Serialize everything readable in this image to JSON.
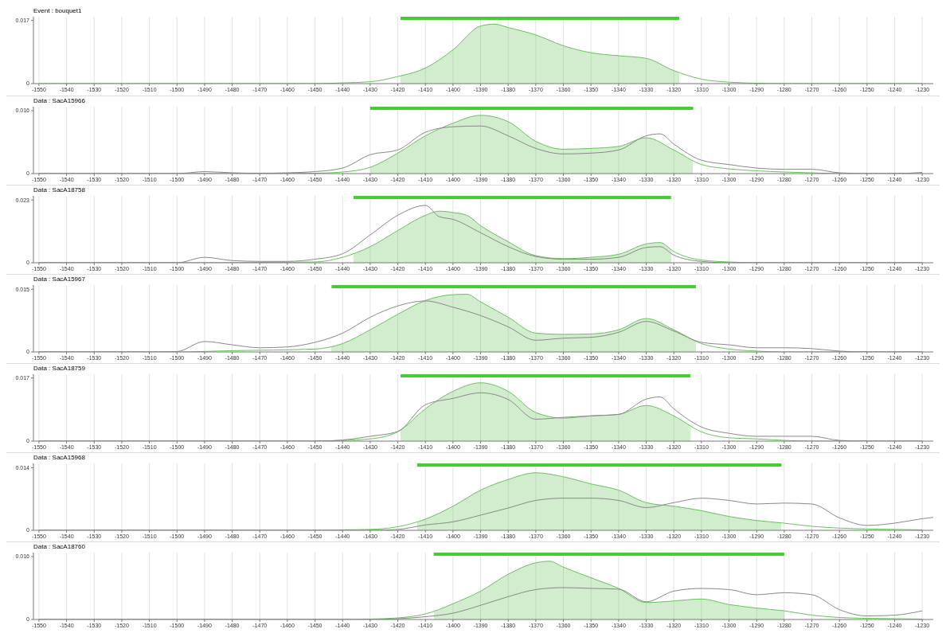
{
  "chart_data": [
    {
      "type": "area",
      "title": "Event : bouquet1",
      "xlim": [
        -1552,
        -1226
      ],
      "xticks": [
        -1550,
        -1540,
        -1530,
        -1520,
        -1510,
        -1500,
        -1490,
        -1480,
        -1470,
        -1460,
        -1450,
        -1440,
        -1430,
        -1420,
        -1410,
        -1400,
        -1390,
        -1380,
        -1370,
        -1360,
        -1350,
        -1340,
        -1330,
        -1320,
        -1310,
        -1300,
        -1290,
        -1280,
        -1270,
        -1260,
        -1250,
        -1240,
        -1230
      ],
      "ylim": [
        0,
        0.018
      ],
      "yticks": [
        0,
        0.017
      ],
      "grid": "x",
      "bands": [
        {
          "axis": "x",
          "from": -1419,
          "to": -1318,
          "color": "#44cc33"
        }
      ],
      "series": [
        {
          "color": "#66c35a",
          "x": [
            -1550,
            -1500,
            -1450,
            -1440,
            -1430,
            -1420,
            -1410,
            -1400,
            -1390,
            -1385,
            -1380,
            -1370,
            -1360,
            -1350,
            -1340,
            -1330,
            -1320,
            -1310,
            -1300,
            -1290,
            -1280,
            -1230
          ],
          "values": [
            0,
            0,
            0,
            0.0002,
            0.0005,
            0.0019,
            0.0042,
            0.0091,
            0.0155,
            0.016,
            0.0151,
            0.0131,
            0.0102,
            0.0083,
            0.0075,
            0.0068,
            0.0035,
            0.0012,
            0.0004,
            0.0001,
            0,
            0
          ]
        }
      ]
    },
    {
      "type": "area",
      "title": "Data : SacA15966",
      "xlim": [
        -1552,
        -1226
      ],
      "xticks": [
        -1550,
        -1540,
        -1530,
        -1520,
        -1510,
        -1500,
        -1490,
        -1480,
        -1470,
        -1460,
        -1450,
        -1440,
        -1430,
        -1420,
        -1410,
        -1400,
        -1390,
        -1380,
        -1370,
        -1360,
        -1350,
        -1340,
        -1330,
        -1320,
        -1310,
        -1300,
        -1290,
        -1280,
        -1270,
        -1260,
        -1250,
        -1240,
        -1230
      ],
      "ylim": [
        0,
        0.017
      ],
      "yticks": [
        0,
        0.016
      ],
      "grid": "x",
      "bands": [
        {
          "axis": "x",
          "from": -1430,
          "to": -1313,
          "color": "#44cc33"
        }
      ],
      "series": [
        {
          "type": "line",
          "color": "#888888",
          "x": [
            -1550,
            -1500,
            -1490,
            -1480,
            -1470,
            -1460,
            -1450,
            -1440,
            -1430,
            -1420,
            -1410,
            -1400,
            -1390,
            -1380,
            -1370,
            -1360,
            -1350,
            -1340,
            -1330,
            -1325,
            -1320,
            -1310,
            -1300,
            -1290,
            -1280,
            -1270,
            -1260,
            -1250,
            -1240,
            -1230
          ],
          "values": [
            0,
            0,
            0.0005,
            0.0002,
            0.0001,
            0.0002,
            0.0005,
            0.0014,
            0.0048,
            0.006,
            0.0105,
            0.0119,
            0.0121,
            0.0096,
            0.0064,
            0.005,
            0.0052,
            0.006,
            0.0096,
            0.0101,
            0.0075,
            0.0034,
            0.0023,
            0.0014,
            0.0011,
            0.0011,
            0.0002,
            0,
            0,
            0.0003
          ]
        },
        {
          "color": "#66c35a",
          "x": [
            -1550,
            -1500,
            -1450,
            -1440,
            -1430,
            -1420,
            -1410,
            -1400,
            -1390,
            -1380,
            -1370,
            -1360,
            -1350,
            -1340,
            -1330,
            -1320,
            -1310,
            -1300,
            -1290,
            -1280,
            -1270,
            -1260,
            -1230
          ],
          "values": [
            0,
            0,
            0.0001,
            0.0004,
            0.0016,
            0.0052,
            0.0096,
            0.0128,
            0.0148,
            0.0132,
            0.0082,
            0.0062,
            0.0064,
            0.0069,
            0.0091,
            0.006,
            0.0023,
            0.0012,
            0.0007,
            0.0004,
            0.0002,
            0,
            0
          ]
        }
      ]
    },
    {
      "type": "area",
      "title": "Data : SacA18758",
      "xlim": [
        -1552,
        -1226
      ],
      "xticks": [
        -1550,
        -1540,
        -1530,
        -1520,
        -1510,
        -1500,
        -1490,
        -1480,
        -1470,
        -1460,
        -1450,
        -1440,
        -1430,
        -1420,
        -1410,
        -1400,
        -1390,
        -1380,
        -1370,
        -1360,
        -1350,
        -1340,
        -1330,
        -1320,
        -1310,
        -1300,
        -1290,
        -1280,
        -1270,
        -1260,
        -1250,
        -1240,
        -1230
      ],
      "ylim": [
        0,
        0.0245
      ],
      "yticks": [
        0,
        0.023
      ],
      "grid": "x",
      "bands": [
        {
          "axis": "x",
          "from": -1436,
          "to": -1321,
          "color": "#44cc33"
        }
      ],
      "series": [
        {
          "type": "line",
          "color": "#888888",
          "x": [
            -1550,
            -1500,
            -1490,
            -1480,
            -1470,
            -1460,
            -1450,
            -1440,
            -1430,
            -1420,
            -1410,
            -1405,
            -1400,
            -1390,
            -1380,
            -1370,
            -1360,
            -1350,
            -1340,
            -1330,
            -1325,
            -1320,
            -1310,
            -1300,
            -1230
          ],
          "values": [
            0,
            0,
            0.002,
            0.0008,
            0.0005,
            0.0005,
            0.0013,
            0.0033,
            0.0102,
            0.0174,
            0.021,
            0.0169,
            0.0159,
            0.011,
            0.0059,
            0.0023,
            0.0013,
            0.0013,
            0.002,
            0.0056,
            0.0059,
            0.0028,
            0.0005,
            0,
            0
          ]
        },
        {
          "color": "#66c35a",
          "x": [
            -1550,
            -1500,
            -1450,
            -1440,
            -1430,
            -1420,
            -1410,
            -1405,
            -1400,
            -1395,
            -1390,
            -1380,
            -1370,
            -1360,
            -1350,
            -1340,
            -1330,
            -1325,
            -1320,
            -1310,
            -1300,
            -1290,
            -1230
          ],
          "values": [
            0,
            0,
            0.0003,
            0.002,
            0.0059,
            0.0118,
            0.0174,
            0.0189,
            0.0184,
            0.0174,
            0.0136,
            0.0077,
            0.0026,
            0.0015,
            0.002,
            0.0031,
            0.0069,
            0.0074,
            0.0041,
            0.001,
            0.0003,
            0,
            0
          ]
        }
      ]
    },
    {
      "type": "area",
      "title": "Data : SacA15967",
      "xlim": [
        -1552,
        -1226
      ],
      "xticks": [
        -1550,
        -1540,
        -1530,
        -1520,
        -1510,
        -1500,
        -1490,
        -1480,
        -1470,
        -1460,
        -1450,
        -1440,
        -1430,
        -1420,
        -1410,
        -1400,
        -1390,
        -1380,
        -1370,
        -1360,
        -1350,
        -1340,
        -1330,
        -1320,
        -1310,
        -1300,
        -1290,
        -1280,
        -1270,
        -1260,
        -1250,
        -1240,
        -1230
      ],
      "ylim": [
        0,
        0.016
      ],
      "yticks": [
        0,
        0.015
      ],
      "grid": "x",
      "bands": [
        {
          "axis": "x",
          "from": -1444,
          "to": -1312,
          "color": "#44cc33"
        }
      ],
      "series": [
        {
          "type": "line",
          "color": "#888888",
          "x": [
            -1550,
            -1510,
            -1500,
            -1490,
            -1480,
            -1470,
            -1460,
            -1450,
            -1440,
            -1430,
            -1420,
            -1410,
            -1400,
            -1390,
            -1380,
            -1370,
            -1360,
            -1350,
            -1340,
            -1330,
            -1320,
            -1310,
            -1300,
            -1290,
            -1280,
            -1270,
            -1260,
            -1250,
            -1230
          ],
          "values": [
            0,
            0,
            0.0001,
            0.0025,
            0.0017,
            0.001,
            0.0012,
            0.0023,
            0.0045,
            0.0083,
            0.011,
            0.0122,
            0.0107,
            0.0087,
            0.006,
            0.0028,
            0.0033,
            0.0035,
            0.0047,
            0.0073,
            0.005,
            0.0023,
            0.0017,
            0.001,
            0.001,
            0.0008,
            0.0002,
            0,
            0
          ]
        },
        {
          "color": "#66c35a",
          "x": [
            -1550,
            -1500,
            -1480,
            -1450,
            -1440,
            -1430,
            -1420,
            -1410,
            -1400,
            -1395,
            -1390,
            -1380,
            -1370,
            -1360,
            -1350,
            -1340,
            -1330,
            -1320,
            -1310,
            -1300,
            -1290,
            -1280,
            -1230
          ],
          "values": [
            0,
            0,
            0.0003,
            0.0007,
            0.002,
            0.0053,
            0.009,
            0.0123,
            0.0137,
            0.0138,
            0.012,
            0.0083,
            0.0045,
            0.0042,
            0.0043,
            0.0053,
            0.008,
            0.0053,
            0.002,
            0.0007,
            0.0002,
            0,
            0
          ]
        }
      ]
    },
    {
      "type": "area",
      "title": "Data : SacA18759",
      "xlim": [
        -1552,
        -1226
      ],
      "xticks": [
        -1550,
        -1540,
        -1530,
        -1520,
        -1510,
        -1500,
        -1490,
        -1480,
        -1470,
        -1460,
        -1450,
        -1440,
        -1430,
        -1420,
        -1410,
        -1400,
        -1390,
        -1380,
        -1370,
        -1360,
        -1350,
        -1340,
        -1330,
        -1320,
        -1310,
        -1300,
        -1290,
        -1280,
        -1270,
        -1260,
        -1250,
        -1240,
        -1230
      ],
      "ylim": [
        0,
        0.018
      ],
      "yticks": [
        0,
        0.017
      ],
      "grid": "x",
      "bands": [
        {
          "axis": "x",
          "from": -1419,
          "to": -1314,
          "color": "#44cc33"
        }
      ],
      "series": [
        {
          "type": "line",
          "color": "#888888",
          "x": [
            -1550,
            -1450,
            -1440,
            -1430,
            -1420,
            -1410,
            -1400,
            -1390,
            -1380,
            -1370,
            -1360,
            -1350,
            -1340,
            -1330,
            -1325,
            -1320,
            -1310,
            -1300,
            -1290,
            -1280,
            -1270,
            -1260,
            -1250,
            -1230
          ],
          "values": [
            0,
            0,
            0.0003,
            0.0013,
            0.0026,
            0.0098,
            0.0115,
            0.013,
            0.0112,
            0.0059,
            0.0064,
            0.0068,
            0.0072,
            0.0113,
            0.0119,
            0.0087,
            0.0038,
            0.0021,
            0.0013,
            0.0013,
            0.0013,
            0.0002,
            0,
            0
          ]
        },
        {
          "color": "#66c35a",
          "x": [
            -1550,
            -1450,
            -1440,
            -1430,
            -1420,
            -1410,
            -1400,
            -1390,
            -1380,
            -1370,
            -1360,
            -1350,
            -1340,
            -1330,
            -1320,
            -1310,
            -1300,
            -1290,
            -1280,
            -1270,
            -1230
          ],
          "values": [
            0,
            0,
            0.0002,
            0.0006,
            0.0025,
            0.0087,
            0.0134,
            0.0157,
            0.0134,
            0.0077,
            0.0062,
            0.0068,
            0.0072,
            0.0096,
            0.0068,
            0.0025,
            0.0009,
            0.0006,
            0.0002,
            0,
            0
          ]
        }
      ]
    },
    {
      "type": "area",
      "title": "Data : SacA15968",
      "xlim": [
        -1552,
        -1226
      ],
      "xticks": [
        -1550,
        -1540,
        -1530,
        -1520,
        -1510,
        -1500,
        -1490,
        -1480,
        -1470,
        -1460,
        -1450,
        -1440,
        -1430,
        -1420,
        -1410,
        -1400,
        -1390,
        -1380,
        -1370,
        -1360,
        -1350,
        -1340,
        -1330,
        -1320,
        -1310,
        -1300,
        -1290,
        -1280,
        -1270,
        -1260,
        -1250,
        -1240,
        -1230
      ],
      "ylim": [
        0,
        0.015
      ],
      "yticks": [
        0,
        0.014
      ],
      "grid": "x",
      "bands": [
        {
          "axis": "x",
          "from": -1413,
          "to": -1281,
          "color": "#44cc33"
        }
      ],
      "series": [
        {
          "type": "line",
          "color": "#888888",
          "x": [
            -1550,
            -1430,
            -1420,
            -1410,
            -1400,
            -1390,
            -1380,
            -1370,
            -1360,
            -1350,
            -1340,
            -1330,
            -1320,
            -1310,
            -1300,
            -1290,
            -1280,
            -1270,
            -1260,
            -1250,
            -1240,
            -1230,
            -1226
          ],
          "values": [
            0,
            0,
            0.0002,
            0.0012,
            0.0019,
            0.0034,
            0.005,
            0.0067,
            0.0072,
            0.0072,
            0.0067,
            0.0051,
            0.0062,
            0.0072,
            0.0067,
            0.0059,
            0.0061,
            0.0059,
            0.0028,
            0.0011,
            0.0016,
            0.0026,
            0.0029
          ]
        },
        {
          "color": "#66c35a",
          "x": [
            -1550,
            -1450,
            -1440,
            -1430,
            -1420,
            -1410,
            -1400,
            -1390,
            -1380,
            -1370,
            -1360,
            -1350,
            -1340,
            -1330,
            -1320,
            -1310,
            -1300,
            -1290,
            -1280,
            -1270,
            -1260,
            -1250,
            -1240,
            -1230
          ],
          "values": [
            0,
            0,
            0.0001,
            0.0002,
            0.0008,
            0.0025,
            0.0054,
            0.009,
            0.0114,
            0.0129,
            0.012,
            0.0104,
            0.009,
            0.0062,
            0.0054,
            0.0044,
            0.0031,
            0.0022,
            0.0016,
            0.0009,
            0.0005,
            0.0003,
            0.0002,
            0.0001
          ]
        }
      ]
    },
    {
      "type": "area",
      "title": "Data : SacA18760",
      "xlim": [
        -1552,
        -1226
      ],
      "xticks": [
        -1550,
        -1540,
        -1530,
        -1520,
        -1510,
        -1500,
        -1490,
        -1480,
        -1470,
        -1460,
        -1450,
        -1440,
        -1430,
        -1420,
        -1410,
        -1400,
        -1390,
        -1380,
        -1370,
        -1360,
        -1350,
        -1340,
        -1330,
        -1320,
        -1310,
        -1300,
        -1290,
        -1280,
        -1270,
        -1260,
        -1250,
        -1240,
        -1230
      ],
      "ylim": [
        0,
        0.017
      ],
      "yticks": [
        0,
        0.016
      ],
      "grid": "x",
      "bands": [
        {
          "axis": "x",
          "from": -1407,
          "to": -1280,
          "color": "#44cc33"
        }
      ],
      "series": [
        {
          "type": "line",
          "color": "#888888",
          "x": [
            -1550,
            -1430,
            -1420,
            -1410,
            -1400,
            -1390,
            -1380,
            -1370,
            -1360,
            -1350,
            -1340,
            -1330,
            -1320,
            -1310,
            -1300,
            -1290,
            -1280,
            -1270,
            -1260,
            -1250,
            -1240,
            -1230
          ],
          "values": [
            0,
            0,
            0.0002,
            0.0007,
            0.0016,
            0.0036,
            0.0058,
            0.0076,
            0.0081,
            0.0079,
            0.0077,
            0.0045,
            0.0072,
            0.0079,
            0.0076,
            0.0063,
            0.0068,
            0.0063,
            0.0025,
            0.0009,
            0.0011,
            0.0022
          ]
        },
        {
          "color": "#66c35a",
          "x": [
            -1550,
            -1440,
            -1430,
            -1420,
            -1410,
            -1400,
            -1390,
            -1380,
            -1370,
            -1365,
            -1360,
            -1350,
            -1340,
            -1330,
            -1320,
            -1310,
            -1300,
            -1290,
            -1280,
            -1270,
            -1260,
            -1250,
            -1240,
            -1230
          ],
          "values": [
            0,
            0,
            0.0001,
            0.0004,
            0.0014,
            0.004,
            0.0072,
            0.0115,
            0.0144,
            0.0148,
            0.0133,
            0.0106,
            0.0079,
            0.0043,
            0.0047,
            0.0052,
            0.0038,
            0.0029,
            0.0022,
            0.0011,
            0.0005,
            0.0003,
            0.0002,
            0.0001
          ]
        }
      ]
    }
  ]
}
